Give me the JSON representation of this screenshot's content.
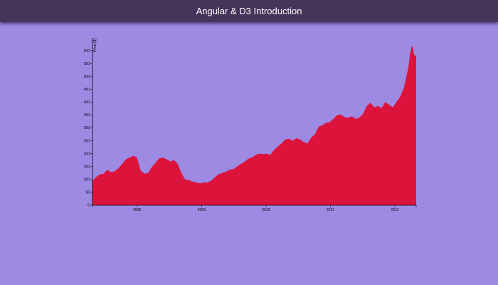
{
  "header": {
    "title": "Angular & D3 Introduction"
  },
  "colors": {
    "background": "#9c8ae3",
    "header": "#46355b",
    "area": "#dc143c",
    "axis": "#000000"
  },
  "chart_data": {
    "type": "area",
    "title": "",
    "xlabel": "",
    "ylabel": "Price ($)",
    "ylim": [
      0,
      650
    ],
    "xlim": [
      "2007-04-24",
      "2012-05-01"
    ],
    "x_ticks": [
      "2008",
      "2009",
      "2010",
      "2011",
      "2012"
    ],
    "y_ticks": [
      0,
      50,
      100,
      150,
      200,
      250,
      300,
      350,
      400,
      450,
      500,
      550,
      600
    ],
    "grid": false,
    "legend": "none",
    "x": [
      "2007-04-24",
      "2007-05-15",
      "2007-06-05",
      "2007-06-26",
      "2007-07-17",
      "2007-08-07",
      "2007-08-28",
      "2007-09-18",
      "2007-10-09",
      "2007-10-30",
      "2007-11-20",
      "2007-12-11",
      "2008-01-01",
      "2008-01-22",
      "2008-02-12",
      "2008-03-04",
      "2008-03-25",
      "2008-04-15",
      "2008-05-06",
      "2008-05-27",
      "2008-06-17",
      "2008-07-08",
      "2008-07-29",
      "2008-08-19",
      "2008-09-09",
      "2008-09-30",
      "2008-10-21",
      "2008-11-11",
      "2008-12-02",
      "2008-12-23",
      "2009-01-13",
      "2009-02-03",
      "2009-02-24",
      "2009-03-17",
      "2009-04-07",
      "2009-04-28",
      "2009-05-19",
      "2009-06-09",
      "2009-06-30",
      "2009-07-21",
      "2009-08-11",
      "2009-09-01",
      "2009-09-22",
      "2009-10-13",
      "2009-11-03",
      "2009-11-24",
      "2009-12-15",
      "2010-01-05",
      "2010-01-26",
      "2010-02-16",
      "2010-03-09",
      "2010-03-30",
      "2010-04-20",
      "2010-05-11",
      "2010-06-01",
      "2010-06-22",
      "2010-07-13",
      "2010-08-03",
      "2010-08-24",
      "2010-09-14",
      "2010-10-05",
      "2010-10-26",
      "2010-11-16",
      "2010-12-07",
      "2010-12-28",
      "2011-01-18",
      "2011-02-08",
      "2011-03-01",
      "2011-03-22",
      "2011-04-12",
      "2011-05-03",
      "2011-05-24",
      "2011-06-14",
      "2011-07-05",
      "2011-07-26",
      "2011-08-16",
      "2011-09-06",
      "2011-09-27",
      "2011-10-18",
      "2011-11-08",
      "2011-11-29",
      "2011-12-20",
      "2012-01-10",
      "2012-01-31",
      "2012-02-21",
      "2012-03-13",
      "2012-03-20",
      "2012-03-27",
      "2012-04-03",
      "2012-04-10",
      "2012-04-17",
      "2012-04-24",
      "2012-05-01"
    ],
    "values": [
      95,
      110,
      120,
      122,
      138,
      128,
      132,
      143,
      160,
      178,
      185,
      192,
      185,
      135,
      122,
      125,
      148,
      165,
      182,
      185,
      178,
      170,
      175,
      160,
      125,
      100,
      98,
      92,
      88,
      85,
      88,
      88,
      95,
      108,
      120,
      125,
      130,
      138,
      140,
      150,
      160,
      168,
      180,
      185,
      195,
      200,
      198,
      200,
      195,
      215,
      228,
      240,
      255,
      258,
      250,
      260,
      255,
      245,
      240,
      262,
      275,
      305,
      310,
      320,
      322,
      335,
      350,
      352,
      342,
      340,
      345,
      335,
      340,
      355,
      385,
      398,
      380,
      385,
      378,
      400,
      390,
      380,
      400,
      420,
      455,
      520,
      545,
      590,
      610,
      620,
      590,
      580,
      580
    ]
  }
}
